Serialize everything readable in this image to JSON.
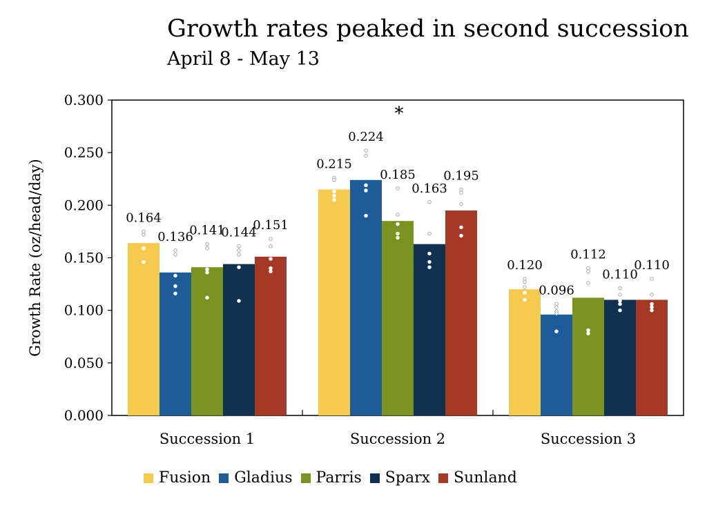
{
  "chart_data": {
    "type": "bar",
    "title": "Growth rates peaked in second succession",
    "subtitle": "April 8 - May 13",
    "xlabel": "",
    "ylabel": "Growth Rate (oz/head/day)",
    "ylim": [
      0,
      0.3
    ],
    "yticks": [
      "0.000",
      "0.050",
      "0.100",
      "0.150",
      "0.200",
      "0.250",
      "0.300"
    ],
    "categories": [
      "Succession 1",
      "Succession 2",
      "Succession 3"
    ],
    "series": [
      {
        "name": "Fusion",
        "color": "#f6c94f",
        "values": [
          0.164,
          0.215,
          0.12
        ],
        "labels": [
          "0.164",
          "0.215",
          "0.120"
        ],
        "points": [
          [
            0.175,
            0.172,
            0.159,
            0.146
          ],
          [
            0.226,
            0.224,
            0.213,
            0.209,
            0.205
          ],
          [
            0.13,
            0.127,
            0.122,
            0.117,
            0.11
          ]
        ]
      },
      {
        "name": "Gladius",
        "color": "#1d5b99",
        "values": [
          0.136,
          0.224,
          0.096
        ],
        "labels": [
          "0.136",
          "0.224",
          "0.096"
        ],
        "points": [
          [
            0.157,
            0.153,
            0.133,
            0.123,
            0.116
          ],
          [
            0.252,
            0.247,
            0.219,
            0.214,
            0.19
          ],
          [
            0.106,
            0.103,
            0.099,
            0.097,
            0.08
          ]
        ]
      },
      {
        "name": "Parris",
        "color": "#7a921f",
        "values": [
          0.141,
          0.185,
          0.112
        ],
        "labels": [
          "0.141",
          "0.185",
          "0.112"
        ],
        "points": [
          [
            0.163,
            0.159,
            0.139,
            0.136,
            0.112
          ],
          [
            0.216,
            0.191,
            0.182,
            0.173,
            0.169
          ],
          [
            0.14,
            0.137,
            0.126,
            0.081,
            0.078
          ]
        ]
      },
      {
        "name": "Sparx",
        "color": "#10304f",
        "values": [
          0.144,
          0.163,
          0.11
        ],
        "labels": [
          "0.144",
          "0.163",
          "0.110"
        ],
        "points": [
          [
            0.161,
            0.157,
            0.153,
            0.141,
            0.109
          ],
          [
            0.203,
            0.173,
            0.154,
            0.146,
            0.141
          ],
          [
            0.121,
            0.115,
            0.109,
            0.106,
            0.1
          ]
        ]
      },
      {
        "name": "Sunland",
        "color": "#a43a26",
        "values": [
          0.151,
          0.195,
          0.11
        ],
        "labels": [
          "0.151",
          "0.195",
          "0.110"
        ],
        "points": [
          [
            0.168,
            0.161,
            0.149,
            0.14,
            0.137
          ],
          [
            0.215,
            0.212,
            0.201,
            0.179,
            0.171
          ],
          [
            0.13,
            0.115,
            0.106,
            0.103,
            0.1
          ]
        ]
      }
    ],
    "annotations": [
      {
        "text": "*",
        "category": "Succession 2",
        "series": "Parris"
      }
    ],
    "legend_position": "bottom",
    "grid": false
  }
}
